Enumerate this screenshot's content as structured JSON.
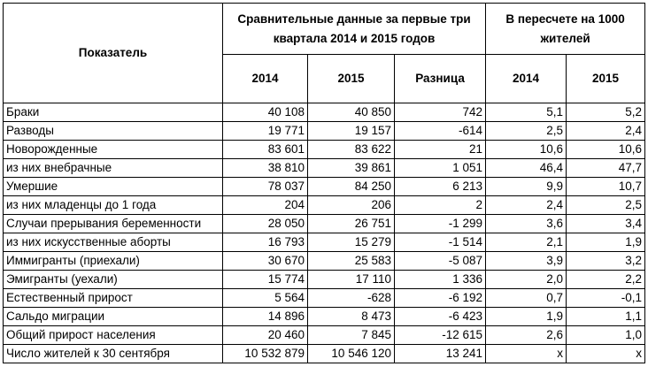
{
  "table": {
    "header": {
      "indicator": "Показатель",
      "group_comparison": "Сравнительные данные за первые три квартала 2014 и 2015 годов",
      "group_comparison_line1": "Сравнительные данные за первые три",
      "group_comparison_line2": "квартала 2014 и 2015 годов",
      "group_per1000": "В пересчете на 1000 жителей",
      "group_per1000_line1": "В пересчете на 1000",
      "group_per1000_line2": "жителей",
      "col_2014": "2014",
      "col_2015": "2015",
      "col_diff": "Разница",
      "col_rate_2014": "2014",
      "col_rate_2015": "2015"
    },
    "rows": [
      {
        "label": "Браки",
        "y2014": "40 108",
        "y2015": "40 850",
        "diff": "742",
        "r2014": "5,1",
        "r2015": "5,2"
      },
      {
        "label": "Разводы",
        "y2014": "19 771",
        "y2015": "19 157",
        "diff": "-614",
        "r2014": "2,5",
        "r2015": "2,4"
      },
      {
        "label": "Новорожденные",
        "y2014": "83 601",
        "y2015": "83 622",
        "diff": "21",
        "r2014": "10,6",
        "r2015": "10,6"
      },
      {
        "label": "из них внебрачные",
        "y2014": "38 810",
        "y2015": "39 861",
        "diff": "1 051",
        "r2014": "46,4",
        "r2015": "47,7"
      },
      {
        "label": "Умершие",
        "y2014": "78 037",
        "y2015": "84 250",
        "diff": "6 213",
        "r2014": "9,9",
        "r2015": "10,7"
      },
      {
        "label": "из них младенцы до 1 года",
        "y2014": "204",
        "y2015": "206",
        "diff": "2",
        "r2014": "2,4",
        "r2015": "2,5"
      },
      {
        "label": "Случаи прерывания беременности",
        "y2014": "28 050",
        "y2015": "26 751",
        "diff": "-1 299",
        "r2014": "3,6",
        "r2015": "3,4"
      },
      {
        "label": "из них искусственные аборты",
        "y2014": "16 793",
        "y2015": "15 279",
        "diff": "-1 514",
        "r2014": "2,1",
        "r2015": "1,9"
      },
      {
        "label": "Иммигранты (приехали)",
        "y2014": "30 670",
        "y2015": "25 583",
        "diff": "-5 087",
        "r2014": "3,9",
        "r2015": "3,2"
      },
      {
        "label": "Эмигранты (уехали)",
        "y2014": "15 774",
        "y2015": "17 110",
        "diff": "1 336",
        "r2014": "2,0",
        "r2015": "2,2"
      },
      {
        "label": "Естественный прирост",
        "y2014": "5 564",
        "y2015": "-628",
        "diff": "-6 192",
        "r2014": "0,7",
        "r2015": "-0,1"
      },
      {
        "label": "Сальдо миграции",
        "y2014": "14 896",
        "y2015": "8 473",
        "diff": "-6 423",
        "r2014": "1,9",
        "r2015": "1,1"
      },
      {
        "label": "Общий прирост населения",
        "y2014": "20 460",
        "y2015": "7 845",
        "diff": "-12 615",
        "r2014": "2,6",
        "r2015": "1,0"
      },
      {
        "label": "Число жителей к 30 сентября",
        "y2014": "10 532 879",
        "y2015": "10 546 120",
        "diff": "13 241",
        "r2014": "x",
        "r2015": "x"
      }
    ]
  }
}
